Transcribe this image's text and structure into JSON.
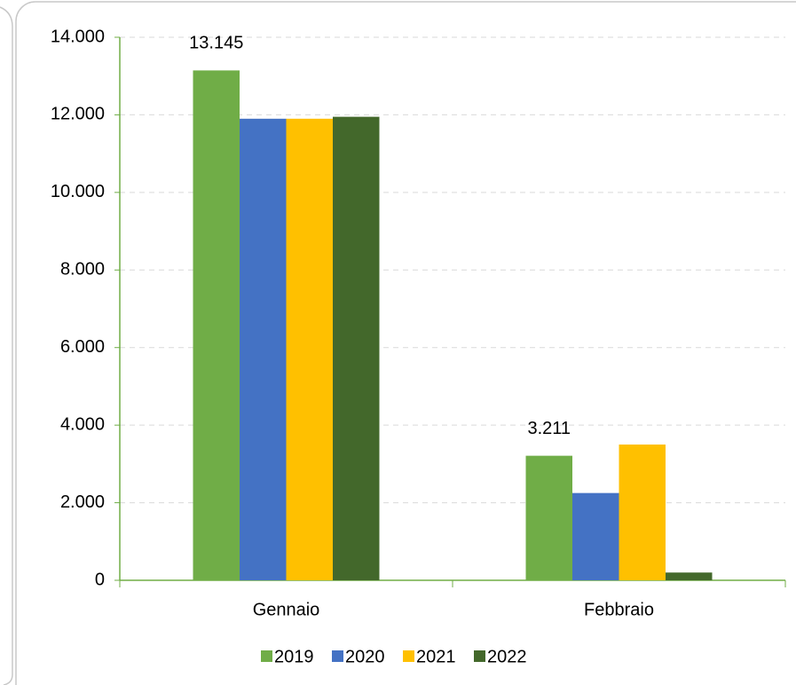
{
  "chart_data": {
    "type": "bar",
    "categories": [
      "Gennaio",
      "Febbraio"
    ],
    "series": [
      {
        "name": "2019",
        "color": "#70ad47",
        "values": [
          13145,
          3211
        ],
        "value_labels": [
          "13.145",
          "3.211"
        ]
      },
      {
        "name": "2020",
        "color": "#4472c4",
        "values": [
          11900,
          2250
        ]
      },
      {
        "name": "2021",
        "color": "#ffc000",
        "values": [
          11900,
          3500
        ]
      },
      {
        "name": "2022",
        "color": "#43682b",
        "values": [
          11950,
          200
        ]
      }
    ],
    "ylim": [
      0,
      14000
    ],
    "yticks": [
      {
        "value": 0,
        "label": "0"
      },
      {
        "value": 2000,
        "label": "2.000"
      },
      {
        "value": 4000,
        "label": "4.000"
      },
      {
        "value": 6000,
        "label": "6.000"
      },
      {
        "value": 8000,
        "label": "8.000"
      },
      {
        "value": 10000,
        "label": "10.000"
      },
      {
        "value": 12000,
        "label": "12.000"
      },
      {
        "value": 14000,
        "label": "14.000"
      }
    ],
    "grid": true,
    "legend": "bottom"
  }
}
